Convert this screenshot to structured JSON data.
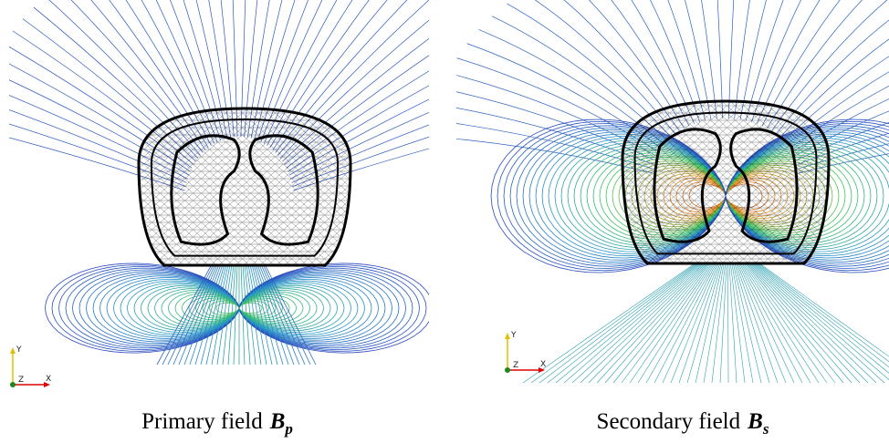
{
  "panels": [
    {
      "caption": "Primary field",
      "symbol": "B",
      "subscript": "p",
      "axes": {
        "y": "Y",
        "z": "Z",
        "x": "X"
      }
    },
    {
      "caption": "Secondary field",
      "symbol": "B",
      "subscript": "s",
      "axes": {
        "y": "Y",
        "z": "Z",
        "x": "X"
      }
    }
  ]
}
